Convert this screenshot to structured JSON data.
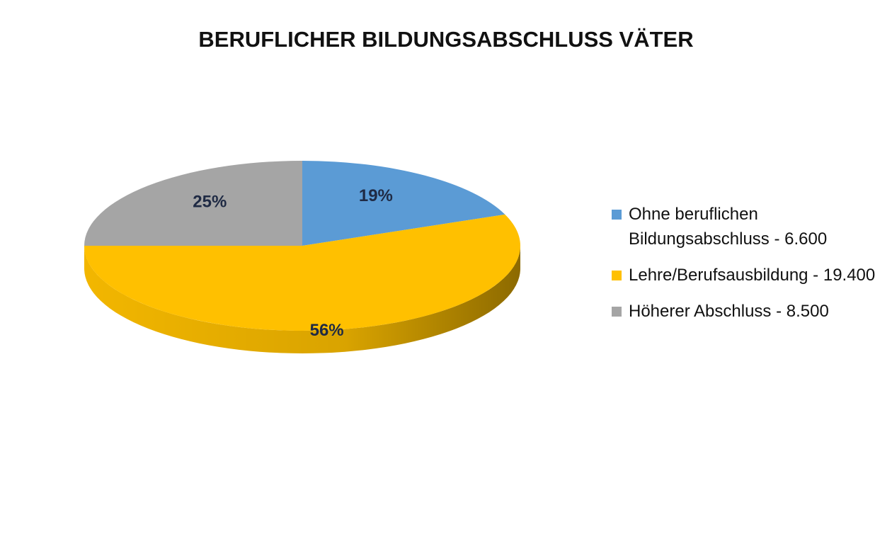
{
  "chart_data": {
    "type": "pie",
    "title": "BERUFLICHER BILDUNGSABSCHLUSS VÄTER",
    "categories": [
      "Ohne beruflichen Bildungsabschluss - 6.600",
      "Lehre/Berufsausbildung - 19.400",
      "Höherer Abschluss - 8.500"
    ],
    "values": [
      19,
      56,
      25
    ],
    "value_labels": [
      "19%",
      "56%",
      "25%"
    ],
    "colors": [
      "#5b9bd5",
      "#ffc000",
      "#a5a5a5"
    ],
    "legend": "right"
  }
}
